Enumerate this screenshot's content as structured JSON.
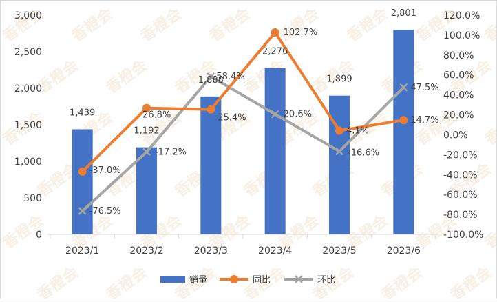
{
  "chart_data": {
    "type": "bar+line",
    "categories": [
      "2023/1",
      "2023/2",
      "2023/3",
      "2023/4",
      "2023/5",
      "2023/6"
    ],
    "series": [
      {
        "name": "销量",
        "type": "bar",
        "axis": "left",
        "color": "#4472C4",
        "values": [
          1439,
          1192,
          1888,
          2276,
          1899,
          2801
        ],
        "labels": [
          "1,439",
          "1,192",
          "1,888",
          "2,276",
          "1,899",
          "2,801"
        ]
      },
      {
        "name": "同比",
        "type": "line",
        "axis": "right",
        "color": "#ED7D31",
        "values": [
          -37.0,
          26.8,
          25.4,
          102.7,
          4.1,
          14.7
        ],
        "labels": [
          "-37.0%",
          "26.8%",
          "25.4%",
          "102.7%",
          "4.1%",
          "14.7%"
        ]
      },
      {
        "name": "环比",
        "type": "line",
        "axis": "right",
        "color": "#A5A5A5",
        "marker": "x",
        "values": [
          -76.5,
          -17.2,
          58.4,
          20.6,
          -16.6,
          47.5
        ],
        "labels": [
          "-76.5%",
          "-17.2%",
          "58.4%",
          "20.6%",
          "-16.6%",
          "47.5%"
        ]
      }
    ],
    "left_axis": {
      "ylim": [
        0,
        3000
      ],
      "ticks": [
        "0",
        "500",
        "1,000",
        "1,500",
        "2,000",
        "2,500",
        "3,000"
      ]
    },
    "right_axis": {
      "ylim": [
        -100,
        120
      ],
      "ticks": [
        "-100.0%",
        "-80.0%",
        "-60.0%",
        "-40.0%",
        "-20.0%",
        "0.0%",
        "20.0%",
        "40.0%",
        "60.0%",
        "80.0%",
        "100.0%",
        "120.0%"
      ]
    },
    "grid": false,
    "legend_position": "bottom"
  },
  "watermark": "香橙会"
}
